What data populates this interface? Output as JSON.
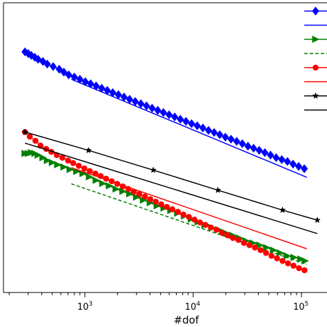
{
  "chart_data": {
    "type": "line",
    "xlabel": "#dof",
    "xscale": "log",
    "yscale": "log",
    "xlim": [
      200,
      150000
    ],
    "ylim": [
      0.0015,
      1.2
    ],
    "grid": false,
    "legend": "right",
    "x_ticks": [
      {
        "base": "10",
        "exp": "3"
      },
      {
        "base": "10",
        "exp": "4"
      },
      {
        "base": "10",
        "exp": "5"
      }
    ],
    "series": [
      {
        "color": "#0000ff",
        "marker": "diamond",
        "linestyle": "solid",
        "x": [
          280,
          300,
          320,
          345,
          370,
          410,
          450,
          510,
          580,
          640,
          710,
          800,
          900,
          1010,
          1130,
          1270,
          1430,
          1610,
          1810,
          2040,
          2300,
          2590,
          2920,
          3290,
          3710,
          4180,
          4710,
          5310,
          5990,
          6750,
          7610,
          8580,
          9670,
          10900,
          12290,
          13850,
          15620,
          17600,
          19840,
          22370,
          25220,
          28430,
          32050,
          36130,
          40730,
          45910,
          51760,
          58350,
          65780,
          74150,
          83590,
          94230,
          106200
        ],
        "y": [
          0.82,
          0.78,
          0.74,
          0.7,
          0.66,
          0.62,
          0.575,
          0.535,
          0.495,
          0.455,
          0.42,
          0.395,
          0.37,
          0.345,
          0.325,
          0.305,
          0.285,
          0.268,
          0.251,
          0.236,
          0.221,
          0.207,
          0.194,
          0.182,
          0.171,
          0.16,
          0.15,
          0.141,
          0.132,
          0.124,
          0.116,
          0.109,
          0.102,
          0.096,
          0.09,
          0.084,
          0.079,
          0.074,
          0.069,
          0.065,
          0.061,
          0.057,
          0.053,
          0.05,
          0.047,
          0.044,
          0.041,
          0.038,
          0.036,
          0.034,
          0.0315,
          0.0295,
          0.0276
        ]
      },
      {
        "color": "#0000ff",
        "marker": "none",
        "linestyle": "solid",
        "x": [
          750,
          112000
        ],
        "y": [
          0.37,
          0.0215
        ]
      },
      {
        "color": "#008000",
        "marker": "triangle-right",
        "linestyle": "solid",
        "x": [
          280,
          300,
          320,
          345,
          370,
          410,
          450,
          500,
          560,
          640,
          730,
          840,
          960,
          1100,
          1270,
          1460,
          1680,
          1940,
          2240,
          2590,
          3000,
          3470,
          4010,
          4640,
          5370,
          6210,
          7180,
          8300,
          9600,
          11100,
          12840,
          14850,
          17180,
          19870,
          22990,
          26590,
          30760,
          35580,
          41160,
          47610,
          55070,
          63710,
          73700,
          85260,
          98630,
          108000
        ],
        "y": [
          0.043,
          0.043,
          0.044,
          0.043,
          0.041,
          0.038,
          0.035,
          0.033,
          0.031,
          0.029,
          0.027,
          0.0255,
          0.024,
          0.0218,
          0.0197,
          0.018,
          0.0168,
          0.0153,
          0.0143,
          0.0133,
          0.0121,
          0.0111,
          0.0103,
          0.0094,
          0.0088,
          0.0082,
          0.0076,
          0.007,
          0.0064,
          0.0059,
          0.0054,
          0.005,
          0.0047,
          0.0043,
          0.004,
          0.0037,
          0.0034,
          0.0032,
          0.003,
          0.0028,
          0.0026,
          0.0024,
          0.0022,
          0.0021,
          0.002,
          0.0019
        ]
      },
      {
        "color": "#008000",
        "marker": "none",
        "linestyle": "dashed",
        "x": [
          750,
          112000
        ],
        "y": [
          0.0178,
          0.00172
        ]
      },
      {
        "color": "#ff0000",
        "marker": "circle",
        "linestyle": "solid",
        "x": [
          280,
          310,
          350,
          390,
          440,
          490,
          550,
          620,
          700,
          780,
          880,
          990,
          1110,
          1250,
          1400,
          1570,
          1770,
          1990,
          2240,
          2520,
          2830,
          3180,
          3580,
          4020,
          4520,
          5080,
          5710,
          6420,
          7220,
          8120,
          9130,
          10260,
          11540,
          12970,
          14580,
          16390,
          18430,
          20720,
          23290,
          26190,
          29440,
          33100,
          37210,
          41830,
          47030,
          52870,
          59440,
          66820,
          75130,
          84460,
          94950,
          106700
        ],
        "y": [
          0.08,
          0.07,
          0.062,
          0.054,
          0.049,
          0.045,
          0.041,
          0.038,
          0.035,
          0.0325,
          0.03,
          0.0278,
          0.0258,
          0.024,
          0.0223,
          0.0207,
          0.0192,
          0.0178,
          0.0165,
          0.0153,
          0.0142,
          0.0132,
          0.0123,
          0.0114,
          0.0106,
          0.0098,
          0.0091,
          0.0085,
          0.0079,
          0.0073,
          0.0068,
          0.0063,
          0.0058,
          0.0054,
          0.005,
          0.0047,
          0.0043,
          0.004,
          0.0037,
          0.0035,
          0.0032,
          0.003,
          0.0028,
          0.0026,
          0.0024,
          0.0022,
          0.00205,
          0.0019,
          0.00177,
          0.00165,
          0.00154,
          0.00145
        ]
      },
      {
        "color": "#ff0000",
        "marker": "none",
        "linestyle": "solid",
        "x": [
          750,
          112000
        ],
        "y": [
          0.0285,
          0.0027
        ]
      },
      {
        "color": "#000000",
        "marker": "star",
        "linestyle": "solid",
        "x": [
          280,
          1080,
          4280,
          16900,
          66800,
          140000
        ],
        "y": [
          0.08,
          0.047,
          0.0265,
          0.0148,
          0.0083,
          0.0062
        ]
      },
      {
        "color": "#000000",
        "marker": "none",
        "linestyle": "solid",
        "x": [
          280,
          140000
        ],
        "y": [
          0.058,
          0.0042
        ]
      }
    ]
  }
}
